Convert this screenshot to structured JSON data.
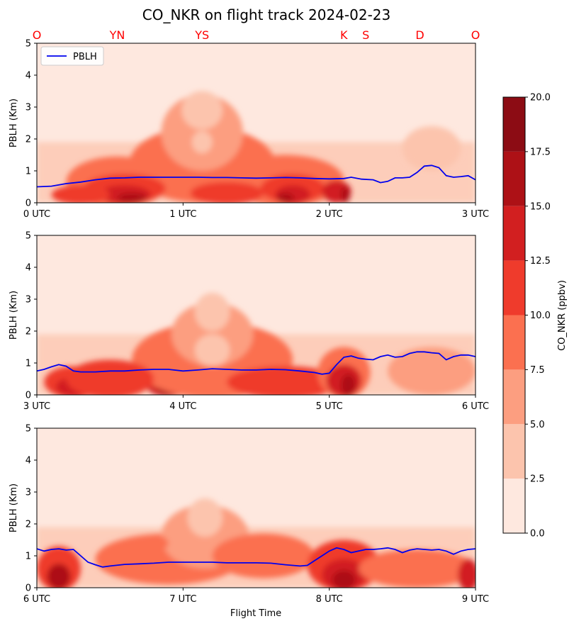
{
  "chart_data": {
    "type": "area",
    "title": "CO_NKR on flight track 2024-02-23",
    "xlabel": "Flight Time",
    "ylabel": "PBLH (Km)",
    "ylim": [
      0,
      5
    ],
    "yticks": [
      "0",
      "1",
      "2",
      "3",
      "4",
      "5"
    ],
    "legend": {
      "label": "PBLH",
      "placement": "top-left",
      "color": "#0000ee"
    },
    "station_labels": [
      {
        "text": "O",
        "t": 0.0
      },
      {
        "text": "YN",
        "t": 0.55
      },
      {
        "text": "YS",
        "t": 1.13
      },
      {
        "text": "K",
        "t": 2.1
      },
      {
        "text": "S",
        "t": 2.25
      },
      {
        "text": "D",
        "t": 2.62
      },
      {
        "text": "O",
        "t": 3.0
      }
    ],
    "station_color": "#ff0000",
    "colorbar": {
      "label": "CO_NKR (ppbv)",
      "ticks": [
        "0.0",
        "2.5",
        "5.0",
        "7.5",
        "10.0",
        "12.5",
        "15.0",
        "17.5",
        "20.0"
      ],
      "levels": [
        0,
        2.5,
        5,
        7.5,
        10,
        12.5,
        15,
        17.5,
        20
      ],
      "colors": [
        "#fee8df",
        "#fcc4ad",
        "#fc9e80",
        "#fb7050",
        "#ef3b2c",
        "#d21f20",
        "#ad1116",
        "#8c0c14"
      ]
    },
    "panels": [
      {
        "xlim": [
          0,
          3
        ],
        "xtick_labels": [
          "0 UTC",
          "1 UTC",
          "2 UTC",
          "3 UTC"
        ],
        "pblh": [
          [
            0,
            0.5
          ],
          [
            0.1,
            0.52
          ],
          [
            0.2,
            0.6
          ],
          [
            0.3,
            0.65
          ],
          [
            0.4,
            0.72
          ],
          [
            0.5,
            0.77
          ],
          [
            0.6,
            0.78
          ],
          [
            0.7,
            0.8
          ],
          [
            0.8,
            0.8
          ],
          [
            0.9,
            0.8
          ],
          [
            1.0,
            0.8
          ],
          [
            1.1,
            0.8
          ],
          [
            1.2,
            0.79
          ],
          [
            1.3,
            0.79
          ],
          [
            1.4,
            0.78
          ],
          [
            1.5,
            0.77
          ],
          [
            1.6,
            0.78
          ],
          [
            1.7,
            0.79
          ],
          [
            1.8,
            0.78
          ],
          [
            1.9,
            0.76
          ],
          [
            2.0,
            0.75
          ],
          [
            2.1,
            0.76
          ],
          [
            2.15,
            0.8
          ],
          [
            2.22,
            0.74
          ],
          [
            2.3,
            0.72
          ],
          [
            2.35,
            0.63
          ],
          [
            2.4,
            0.67
          ],
          [
            2.45,
            0.78
          ],
          [
            2.5,
            0.78
          ],
          [
            2.55,
            0.8
          ],
          [
            2.6,
            0.95
          ],
          [
            2.65,
            1.15
          ],
          [
            2.7,
            1.17
          ],
          [
            2.75,
            1.1
          ],
          [
            2.8,
            0.85
          ],
          [
            2.85,
            0.8
          ],
          [
            2.9,
            0.82
          ],
          [
            2.95,
            0.85
          ],
          [
            3.0,
            0.72
          ]
        ]
      },
      {
        "xlim": [
          3,
          6
        ],
        "xtick_labels": [
          "3 UTC",
          "4 UTC",
          "5 UTC",
          "6 UTC"
        ],
        "pblh": [
          [
            3.0,
            0.75
          ],
          [
            3.05,
            0.8
          ],
          [
            3.1,
            0.88
          ],
          [
            3.15,
            0.95
          ],
          [
            3.2,
            0.9
          ],
          [
            3.25,
            0.75
          ],
          [
            3.3,
            0.72
          ],
          [
            3.4,
            0.72
          ],
          [
            3.5,
            0.75
          ],
          [
            3.6,
            0.75
          ],
          [
            3.7,
            0.78
          ],
          [
            3.8,
            0.8
          ],
          [
            3.9,
            0.8
          ],
          [
            4.0,
            0.75
          ],
          [
            4.1,
            0.78
          ],
          [
            4.2,
            0.82
          ],
          [
            4.3,
            0.8
          ],
          [
            4.4,
            0.78
          ],
          [
            4.5,
            0.78
          ],
          [
            4.6,
            0.8
          ],
          [
            4.7,
            0.79
          ],
          [
            4.8,
            0.75
          ],
          [
            4.9,
            0.7
          ],
          [
            4.95,
            0.65
          ],
          [
            5.0,
            0.68
          ],
          [
            5.05,
            0.95
          ],
          [
            5.1,
            1.18
          ],
          [
            5.15,
            1.22
          ],
          [
            5.2,
            1.15
          ],
          [
            5.25,
            1.12
          ],
          [
            5.3,
            1.1
          ],
          [
            5.35,
            1.2
          ],
          [
            5.4,
            1.25
          ],
          [
            5.45,
            1.18
          ],
          [
            5.5,
            1.2
          ],
          [
            5.55,
            1.3
          ],
          [
            5.6,
            1.35
          ],
          [
            5.65,
            1.35
          ],
          [
            5.7,
            1.32
          ],
          [
            5.75,
            1.3
          ],
          [
            5.8,
            1.1
          ],
          [
            5.85,
            1.2
          ],
          [
            5.9,
            1.25
          ],
          [
            5.95,
            1.25
          ],
          [
            6.0,
            1.2
          ]
        ]
      },
      {
        "xlim": [
          6,
          9
        ],
        "xtick_labels": [
          "6 UTC",
          "7 UTC",
          "8 UTC",
          "9 UTC"
        ],
        "pblh": [
          [
            6.0,
            1.22
          ],
          [
            6.05,
            1.15
          ],
          [
            6.1,
            1.2
          ],
          [
            6.15,
            1.22
          ],
          [
            6.2,
            1.18
          ],
          [
            6.25,
            1.2
          ],
          [
            6.3,
            1.0
          ],
          [
            6.35,
            0.8
          ],
          [
            6.4,
            0.72
          ],
          [
            6.45,
            0.65
          ],
          [
            6.5,
            0.68
          ],
          [
            6.6,
            0.73
          ],
          [
            6.7,
            0.75
          ],
          [
            6.8,
            0.77
          ],
          [
            6.9,
            0.8
          ],
          [
            7.0,
            0.8
          ],
          [
            7.1,
            0.8
          ],
          [
            7.2,
            0.8
          ],
          [
            7.3,
            0.78
          ],
          [
            7.4,
            0.78
          ],
          [
            7.5,
            0.78
          ],
          [
            7.6,
            0.77
          ],
          [
            7.7,
            0.72
          ],
          [
            7.8,
            0.68
          ],
          [
            7.85,
            0.7
          ],
          [
            7.9,
            0.85
          ],
          [
            7.95,
            1.0
          ],
          [
            8.0,
            1.15
          ],
          [
            8.05,
            1.25
          ],
          [
            8.1,
            1.2
          ],
          [
            8.15,
            1.1
          ],
          [
            8.2,
            1.15
          ],
          [
            8.25,
            1.2
          ],
          [
            8.3,
            1.2
          ],
          [
            8.35,
            1.22
          ],
          [
            8.4,
            1.25
          ],
          [
            8.45,
            1.2
          ],
          [
            8.5,
            1.1
          ],
          [
            8.55,
            1.18
          ],
          [
            8.6,
            1.22
          ],
          [
            8.65,
            1.2
          ],
          [
            8.7,
            1.18
          ],
          [
            8.75,
            1.2
          ],
          [
            8.8,
            1.15
          ],
          [
            8.85,
            1.05
          ],
          [
            8.9,
            1.15
          ],
          [
            8.95,
            1.2
          ],
          [
            9.0,
            1.22
          ]
        ]
      }
    ]
  }
}
